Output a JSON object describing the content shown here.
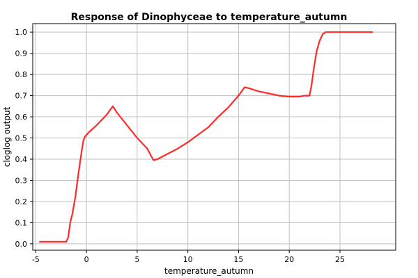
{
  "chart_data": {
    "type": "line",
    "title": "Response of Dinophyceae to temperature_autumn",
    "xlabel": "temperature_autumn",
    "ylabel": "cloglog output",
    "xlim": [
      -5.3,
      30.5
    ],
    "ylim": [
      -0.03,
      1.04
    ],
    "xticks": [
      -5,
      0,
      5,
      10,
      15,
      20,
      25
    ],
    "xtick_labels": [
      "-5",
      "0",
      "5",
      "10",
      "15",
      "20",
      "25"
    ],
    "yticks": [
      0.0,
      0.1,
      0.2,
      0.3,
      0.4,
      0.5,
      0.6,
      0.7,
      0.8,
      0.9,
      1.0
    ],
    "ytick_labels": [
      "0.0",
      "0.1",
      "0.2",
      "0.3",
      "0.4",
      "0.5",
      "0.6",
      "0.7",
      "0.8",
      "0.9",
      "1.0"
    ],
    "grid": true,
    "colors": {
      "line": "#ff2a2a",
      "grid": "#c0c0c0",
      "axis": "#000000"
    },
    "series": [
      {
        "x": [
          -4.6,
          -2.0,
          -1.8,
          -1.6,
          -1.4,
          -1.1,
          -0.8,
          -0.5,
          -0.3,
          -0.1,
          0.0,
          0.3,
          1.0,
          2.0,
          2.6,
          3.0,
          4.0,
          5.0,
          6.0,
          6.6,
          7.0,
          8.0,
          9.0,
          10.0,
          11.0,
          12.0,
          13.0,
          14.0,
          15.0,
          15.6,
          16.0,
          17.0,
          18.0,
          19.0,
          20.0,
          21.0,
          21.5,
          22.0,
          22.2,
          22.4,
          22.7,
          23.0,
          23.3,
          23.6,
          24.0,
          25.0,
          26.0,
          27.0,
          28.2
        ],
        "y": [
          0.01,
          0.01,
          0.03,
          0.1,
          0.14,
          0.22,
          0.33,
          0.43,
          0.49,
          0.51,
          0.515,
          0.53,
          0.56,
          0.61,
          0.65,
          0.62,
          0.56,
          0.5,
          0.45,
          0.395,
          0.4,
          0.425,
          0.45,
          0.48,
          0.515,
          0.55,
          0.6,
          0.645,
          0.7,
          0.74,
          0.735,
          0.72,
          0.71,
          0.7,
          0.695,
          0.695,
          0.7,
          0.7,
          0.75,
          0.82,
          0.91,
          0.96,
          0.99,
          1.0,
          1.0,
          1.0,
          1.0,
          1.0,
          1.0
        ]
      }
    ]
  }
}
